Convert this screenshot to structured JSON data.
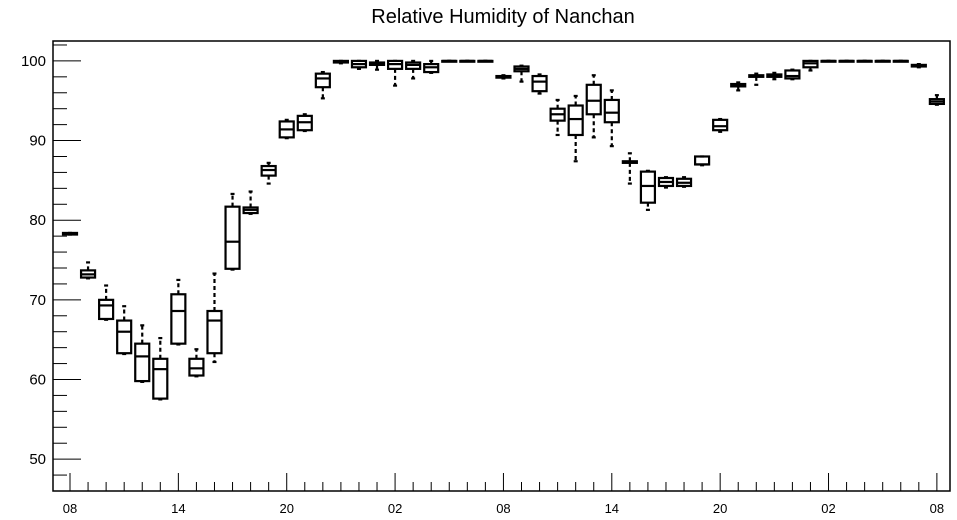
{
  "chart_data": {
    "type": "box",
    "title": "Relative Humidity of Nanchan",
    "xlabel": "",
    "ylabel": "",
    "ylim": [
      46,
      102.5
    ],
    "yticks": [
      50,
      60,
      70,
      80,
      90,
      100
    ],
    "xticks": [
      {
        "pos": 0,
        "label": "08"
      },
      {
        "pos": 6,
        "label": "14"
      },
      {
        "pos": 12,
        "label": "20"
      },
      {
        "pos": 18,
        "label": "02"
      },
      {
        "pos": 24,
        "label": "08"
      },
      {
        "pos": 30,
        "label": "14"
      },
      {
        "pos": 36,
        "label": "20"
      },
      {
        "pos": 42,
        "label": "02"
      },
      {
        "pos": 48,
        "label": "08"
      }
    ],
    "grid": false,
    "boxes": [
      {
        "x": 0,
        "min": 78.2,
        "q1": 78.2,
        "median": 78.3,
        "q3": 78.4,
        "max": 78.4
      },
      {
        "x": 1,
        "min": 72.7,
        "q1": 72.8,
        "median": 73.2,
        "q3": 73.7,
        "max": 74.7
      },
      {
        "x": 2,
        "min": 67.5,
        "q1": 67.6,
        "median": 69.3,
        "q3": 70.0,
        "max": 71.8
      },
      {
        "x": 3,
        "min": 63.2,
        "q1": 63.3,
        "median": 66.0,
        "q3": 67.4,
        "max": 69.2
      },
      {
        "x": 4,
        "min": 59.7,
        "q1": 59.8,
        "median": 62.9,
        "q3": 64.5,
        "max": 66.8
      },
      {
        "x": 5,
        "min": 57.5,
        "q1": 57.6,
        "median": 61.3,
        "q3": 62.6,
        "max": 65.2
      },
      {
        "x": 6,
        "min": 64.4,
        "q1": 64.5,
        "median": 68.6,
        "q3": 70.7,
        "max": 72.5
      },
      {
        "x": 7,
        "min": 60.4,
        "q1": 60.5,
        "median": 61.4,
        "q3": 62.6,
        "max": 63.8
      },
      {
        "x": 8,
        "min": 62.2,
        "q1": 63.3,
        "median": 67.4,
        "q3": 68.6,
        "max": 73.3
      },
      {
        "x": 9,
        "min": 73.8,
        "q1": 73.9,
        "median": 77.3,
        "q3": 81.7,
        "max": 83.3
      },
      {
        "x": 10,
        "min": 80.8,
        "q1": 80.9,
        "median": 81.3,
        "q3": 81.6,
        "max": 83.6
      },
      {
        "x": 11,
        "min": 84.6,
        "q1": 85.6,
        "median": 86.3,
        "q3": 86.8,
        "max": 87.2
      },
      {
        "x": 12,
        "min": 90.3,
        "q1": 90.4,
        "median": 91.4,
        "q3": 92.4,
        "max": 92.6
      },
      {
        "x": 13,
        "min": 91.2,
        "q1": 91.3,
        "median": 92.3,
        "q3": 93.1,
        "max": 93.3
      },
      {
        "x": 14,
        "min": 95.3,
        "q1": 96.7,
        "median": 97.8,
        "q3": 98.4,
        "max": 98.6
      },
      {
        "x": 15,
        "min": 99.7,
        "q1": 99.8,
        "median": 99.9,
        "q3": 100.0,
        "max": 100.0
      },
      {
        "x": 16,
        "min": 99.0,
        "q1": 99.2,
        "median": 99.6,
        "q3": 100.0,
        "max": 100.0
      },
      {
        "x": 17,
        "min": 98.9,
        "q1": 99.5,
        "median": 99.7,
        "q3": 99.8,
        "max": 100.0
      },
      {
        "x": 18,
        "min": 96.9,
        "q1": 99.0,
        "median": 99.6,
        "q3": 100.0,
        "max": 100.0
      },
      {
        "x": 19,
        "min": 97.8,
        "q1": 99.0,
        "median": 99.5,
        "q3": 99.8,
        "max": 100.0
      },
      {
        "x": 20,
        "min": 98.5,
        "q1": 98.6,
        "median": 99.2,
        "q3": 99.6,
        "max": 100.0
      },
      {
        "x": 21,
        "min": 100.0,
        "q1": 100.0,
        "median": 100.0,
        "q3": 100.0,
        "max": 100.0
      },
      {
        "x": 22,
        "min": 100.0,
        "q1": 100.0,
        "median": 100.0,
        "q3": 100.0,
        "max": 100.0
      },
      {
        "x": 23,
        "min": 100.0,
        "q1": 100.0,
        "median": 100.0,
        "q3": 100.0,
        "max": 100.0
      },
      {
        "x": 24,
        "min": 97.8,
        "q1": 97.9,
        "median": 98.0,
        "q3": 98.1,
        "max": 98.2
      },
      {
        "x": 25,
        "min": 97.4,
        "q1": 98.7,
        "median": 99.0,
        "q3": 99.3,
        "max": 99.4
      },
      {
        "x": 26,
        "min": 95.9,
        "q1": 96.2,
        "median": 97.4,
        "q3": 98.1,
        "max": 98.3
      },
      {
        "x": 27,
        "min": 90.7,
        "q1": 92.5,
        "median": 93.3,
        "q3": 94.0,
        "max": 95.1
      },
      {
        "x": 28,
        "min": 87.4,
        "q1": 90.7,
        "median": 92.7,
        "q3": 94.4,
        "max": 95.6
      },
      {
        "x": 29,
        "min": 90.4,
        "q1": 93.3,
        "median": 95.0,
        "q3": 97.0,
        "max": 98.2
      },
      {
        "x": 30,
        "min": 89.3,
        "q1": 92.3,
        "median": 93.5,
        "q3": 95.1,
        "max": 96.3
      },
      {
        "x": 31,
        "min": 84.6,
        "q1": 87.2,
        "median": 87.3,
        "q3": 87.4,
        "max": 88.4
      },
      {
        "x": 32,
        "min": 81.3,
        "q1": 82.2,
        "median": 84.3,
        "q3": 86.1,
        "max": 86.2
      },
      {
        "x": 33,
        "min": 84.1,
        "q1": 84.3,
        "median": 84.8,
        "q3": 85.3,
        "max": 85.4
      },
      {
        "x": 34,
        "min": 84.2,
        "q1": 84.3,
        "median": 84.7,
        "q3": 85.2,
        "max": 85.4
      },
      {
        "x": 35,
        "min": 86.9,
        "q1": 87.0,
        "median": 87.0,
        "q3": 88.0,
        "max": 88.0
      },
      {
        "x": 36,
        "min": 91.1,
        "q1": 91.3,
        "median": 91.8,
        "q3": 92.6,
        "max": 92.7
      },
      {
        "x": 37,
        "min": 96.3,
        "q1": 96.8,
        "median": 97.0,
        "q3": 97.1,
        "max": 97.3
      },
      {
        "x": 38,
        "min": 97.0,
        "q1": 98.0,
        "median": 98.1,
        "q3": 98.2,
        "max": 98.4
      },
      {
        "x": 39,
        "min": 97.7,
        "q1": 98.0,
        "median": 98.2,
        "q3": 98.3,
        "max": 98.5
      },
      {
        "x": 40,
        "min": 97.7,
        "q1": 97.8,
        "median": 98.1,
        "q3": 98.8,
        "max": 98.9
      },
      {
        "x": 41,
        "min": 98.8,
        "q1": 99.2,
        "median": 99.7,
        "q3": 100.0,
        "max": 100.0
      },
      {
        "x": 42,
        "min": 100.0,
        "q1": 100.0,
        "median": 100.0,
        "q3": 100.0,
        "max": 100.0
      },
      {
        "x": 43,
        "min": 100.0,
        "q1": 100.0,
        "median": 100.0,
        "q3": 100.0,
        "max": 100.0
      },
      {
        "x": 44,
        "min": 100.0,
        "q1": 100.0,
        "median": 100.0,
        "q3": 100.0,
        "max": 100.0
      },
      {
        "x": 45,
        "min": 100.0,
        "q1": 100.0,
        "median": 100.0,
        "q3": 100.0,
        "max": 100.0
      },
      {
        "x": 46,
        "min": 100.0,
        "q1": 100.0,
        "median": 100.0,
        "q3": 100.0,
        "max": 100.0
      },
      {
        "x": 47,
        "min": 99.2,
        "q1": 99.3,
        "median": 99.4,
        "q3": 99.5,
        "max": 99.6
      },
      {
        "x": 48,
        "min": 94.5,
        "q1": 94.6,
        "median": 94.9,
        "q3": 95.2,
        "max": 95.7
      }
    ]
  }
}
